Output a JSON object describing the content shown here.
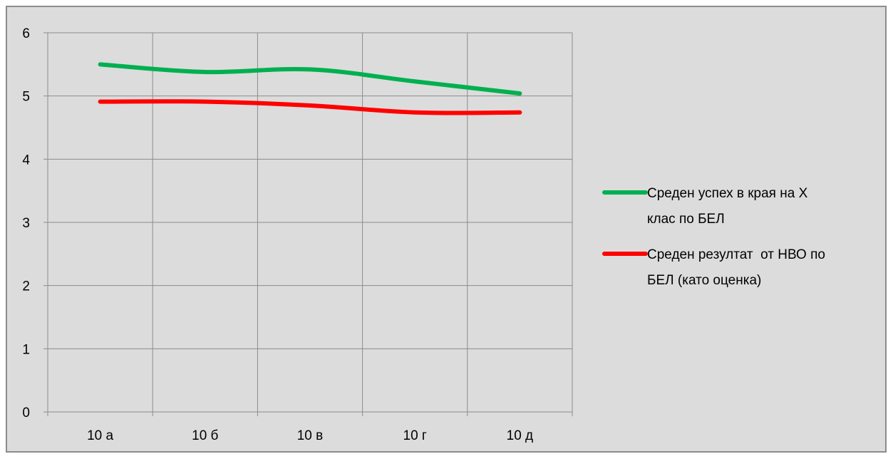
{
  "chart_data": {
    "type": "line",
    "title": "",
    "xlabel": "",
    "ylabel": "",
    "categories": [
      "10 а",
      "10 б",
      "10 в",
      "10 г",
      "10 д"
    ],
    "ylim": [
      0,
      6
    ],
    "yticks": [
      "0",
      "1",
      "2",
      "3",
      "4",
      "5",
      "6"
    ],
    "grid": true,
    "legend_position": "right",
    "series": [
      {
        "name_lines": [
          "Среден успех в края на X",
          "клас по БЕЛ"
        ],
        "color": "#00b050",
        "values": [
          5.5,
          5.38,
          5.42,
          5.23,
          5.04
        ]
      },
      {
        "name_lines": [
          "Среден резултат  от НВО по",
          "БЕЛ (като оценка)"
        ],
        "color": "#ff0000",
        "values": [
          4.91,
          4.91,
          4.85,
          4.74,
          4.74
        ]
      }
    ]
  }
}
